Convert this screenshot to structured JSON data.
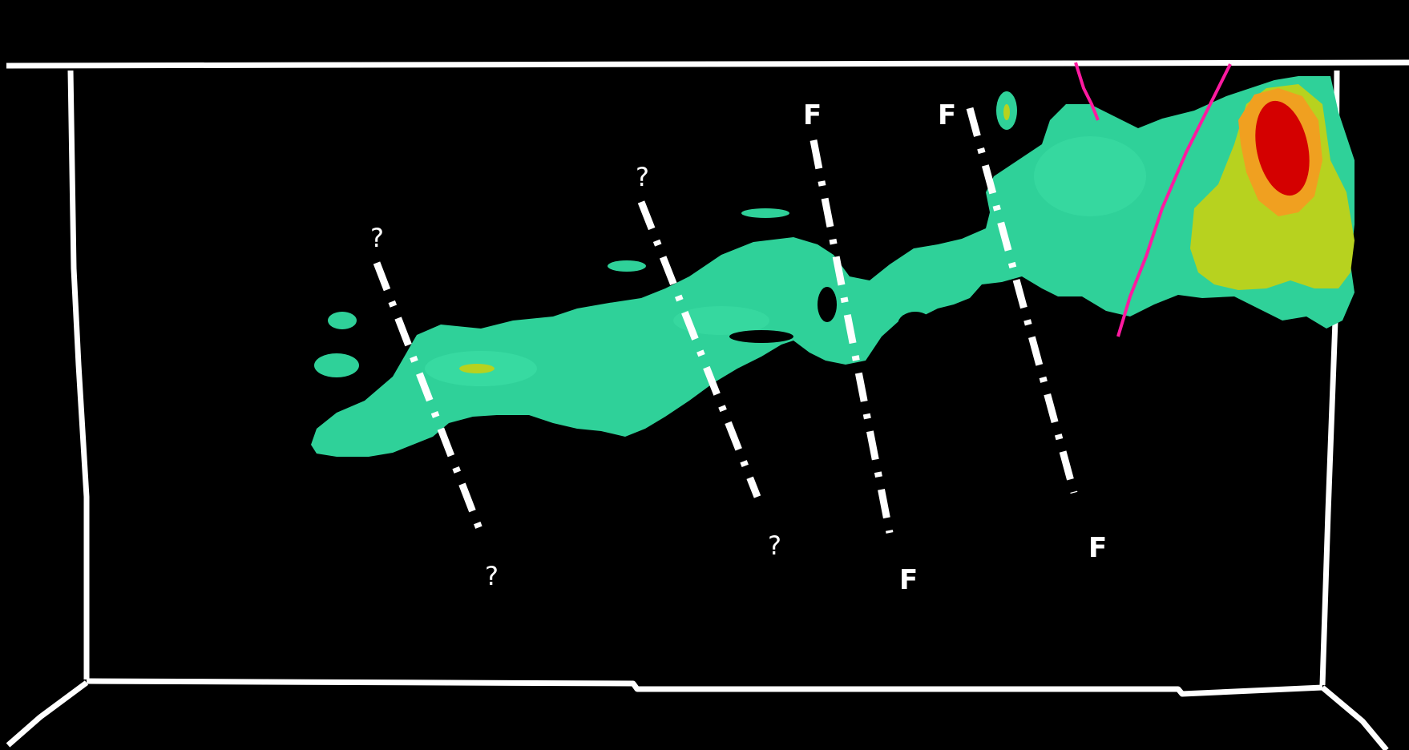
{
  "scene": {
    "background_color": "#000000",
    "frame_color": "#ffffff",
    "body_colors": {
      "low": "#2fd199",
      "medium": "#b7d21f",
      "high": "#f0a020",
      "peak": "#d40000"
    },
    "boundary_color": "#ff1aa0"
  },
  "fault_lines": [
    {
      "top_label": "?",
      "bottom_label": "?"
    },
    {
      "top_label": "?",
      "bottom_label": "?"
    },
    {
      "top_label": "F",
      "bottom_label": "F"
    },
    {
      "top_label": "F",
      "bottom_label": "F"
    }
  ]
}
